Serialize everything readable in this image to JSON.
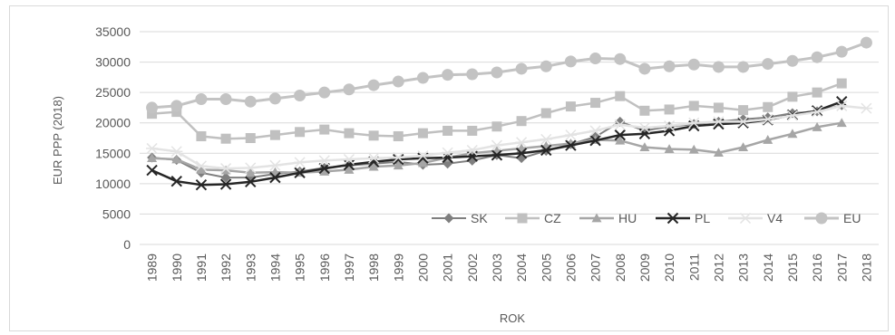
{
  "chart_data": {
    "type": "line",
    "title": "",
    "xlabel": "ROK",
    "ylabel": "EUR PPP (2018)",
    "ylim": [
      0,
      35000
    ],
    "yticks": [
      0,
      5000,
      10000,
      15000,
      20000,
      25000,
      30000,
      35000
    ],
    "grid": "horizontal",
    "legend": "inside-bottom-right",
    "categories": [
      "1989",
      "1990",
      "1991",
      "1992",
      "1993",
      "1994",
      "1995",
      "1996",
      "1997",
      "1998",
      "1999",
      "2000",
      "2001",
      "2002",
      "2003",
      "2004",
      "2005",
      "2006",
      "2007",
      "2008",
      "2009",
      "2010",
      "2011",
      "2012",
      "2013",
      "2014",
      "2015",
      "2016",
      "2017",
      "2018"
    ],
    "series": [
      {
        "name": "SK",
        "marker": "diamond",
        "color": "#7f7f7f",
        "width": 2,
        "values": [
          14300,
          13900,
          11800,
          11000,
          11000,
          11600,
          12000,
          12600,
          13000,
          13300,
          13600,
          13100,
          13300,
          13800,
          14700,
          14200,
          15400,
          16500,
          17700,
          20200,
          18700,
          19400,
          19800,
          20200,
          20600,
          20900,
          21600,
          21900,
          22900,
          null
        ]
      },
      {
        "name": "CZ",
        "marker": "square",
        "color": "#c0c0c0",
        "width": 2.5,
        "values": [
          21500,
          21800,
          17800,
          17400,
          17500,
          18000,
          18500,
          18900,
          18300,
          17900,
          17800,
          18300,
          18700,
          18700,
          19400,
          20300,
          21600,
          22700,
          23300,
          24400,
          22000,
          22200,
          22800,
          22500,
          22100,
          22600,
          24300,
          25000,
          26500,
          null
        ]
      },
      {
        "name": "HU",
        "marker": "triangle",
        "color": "#a6a6a6",
        "width": 2.5,
        "values": [
          14200,
          14000,
          12300,
          12200,
          11800,
          11900,
          11800,
          12000,
          12300,
          12800,
          13000,
          13400,
          14300,
          15000,
          15400,
          15800,
          16200,
          16600,
          17200,
          17100,
          16000,
          15700,
          15600,
          15100,
          16000,
          17200,
          18200,
          19300,
          20000,
          null
        ]
      },
      {
        "name": "PL",
        "marker": "x",
        "color": "#262626",
        "width": 2.5,
        "values": [
          12200,
          10400,
          9800,
          9900,
          10300,
          11000,
          11800,
          12500,
          13100,
          13600,
          14000,
          14200,
          14300,
          14500,
          14700,
          15000,
          15500,
          16300,
          17100,
          18000,
          18200,
          18700,
          19500,
          19800,
          20000,
          20500,
          21300,
          22000,
          23500,
          null
        ]
      },
      {
        "name": "V4",
        "marker": "star",
        "color": "#e3e3e3",
        "width": 2.5,
        "values": [
          15800,
          15300,
          12900,
          12500,
          12600,
          13000,
          13500,
          13800,
          14000,
          14200,
          14300,
          14600,
          15100,
          15500,
          16300,
          16800,
          17300,
          18000,
          18700,
          19700,
          19200,
          19500,
          20000,
          20200,
          20200,
          20600,
          21200,
          21800,
          22800,
          22400
        ]
      },
      {
        "name": "EU",
        "marker": "circle",
        "color": "#c3c3c3",
        "width": 3,
        "values": [
          22500,
          22800,
          23900,
          23900,
          23500,
          24000,
          24500,
          25000,
          25500,
          26200,
          26800,
          27400,
          27900,
          28000,
          28300,
          28900,
          29300,
          30100,
          30600,
          30500,
          28900,
          29300,
          29600,
          29200,
          29200,
          29700,
          30200,
          30800,
          31700,
          33200
        ]
      }
    ]
  }
}
